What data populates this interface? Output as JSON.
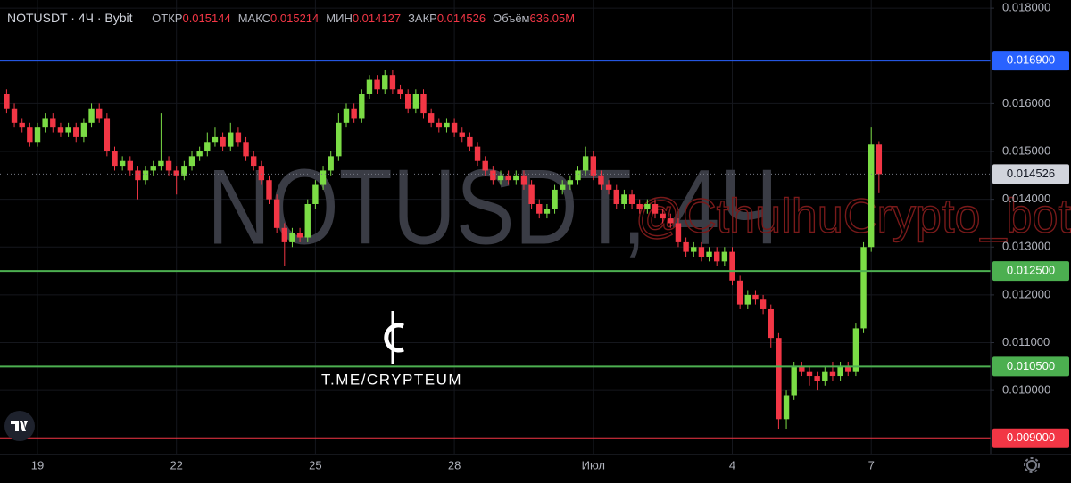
{
  "header": {
    "symbol": "NOTUSDT · 4Ч · Bybit",
    "stats": [
      {
        "name": "ОТКР",
        "value": "0.015144"
      },
      {
        "name": "МАКС",
        "value": "0.015214"
      },
      {
        "name": "МИН",
        "value": "0.014127"
      },
      {
        "name": "ЗАКР",
        "value": "0.014526"
      },
      {
        "name": "Объём",
        "value": "636.05M"
      }
    ]
  },
  "watermarks": {
    "symbol": "NOTUSDT, 4Ч",
    "bot": "@CthulhuCrypto_bot",
    "channel": "T.ME/CRYPTEUM"
  },
  "chart_data": {
    "type": "candlestick",
    "up_color": "#7bdc45",
    "down_color": "#f23645",
    "categories": [
      null,
      null,
      null,
      null,
      "19",
      null,
      null,
      null,
      null,
      null,
      null,
      null,
      null,
      null,
      null,
      null,
      null,
      null,
      null,
      null,
      null,
      null,
      "22",
      null,
      null,
      null,
      null,
      null,
      null,
      null,
      null,
      null,
      null,
      null,
      null,
      null,
      null,
      null,
      null,
      null,
      "25",
      null,
      null,
      null,
      null,
      null,
      null,
      null,
      null,
      null,
      null,
      null,
      null,
      null,
      null,
      null,
      null,
      null,
      "28",
      null,
      null,
      null,
      null,
      null,
      null,
      null,
      null,
      null,
      null,
      null,
      null,
      null,
      null,
      null,
      null,
      null,
      "Июл",
      null,
      null,
      null,
      null,
      null,
      null,
      null,
      null,
      null,
      null,
      null,
      null,
      null,
      null,
      null,
      null,
      null,
      "4",
      null,
      null,
      null,
      null,
      null,
      null,
      null,
      null,
      null,
      null,
      null,
      null,
      null,
      null,
      null,
      null,
      null,
      "7",
      null
    ],
    "open": [
      0.0162,
      0.0159,
      0.0156,
      0.0155,
      0.0152,
      0.0155,
      0.0157,
      0.0155,
      0.0154,
      0.0155,
      0.0153,
      0.0156,
      0.0159,
      0.0157,
      0.015,
      0.0147,
      0.0148,
      0.0146,
      0.0144,
      0.0146,
      0.0147,
      0.0148,
      0.0146,
      0.0145,
      0.0147,
      0.0149,
      0.015,
      0.0152,
      0.0153,
      0.0151,
      0.0154,
      0.0152,
      0.0149,
      0.0147,
      0.0144,
      0.014,
      0.0134,
      0.0131,
      0.0133,
      0.0132,
      0.0139,
      0.0143,
      0.0146,
      0.0149,
      0.0156,
      0.0159,
      0.0157,
      0.0162,
      0.0165,
      0.0163,
      0.0166,
      0.0163,
      0.0162,
      0.0159,
      0.0162,
      0.0158,
      0.0156,
      0.0155,
      0.0156,
      0.0154,
      0.0153,
      0.0151,
      0.0148,
      0.0146,
      0.0144,
      0.0145,
      0.0144,
      0.0145,
      0.0143,
      0.0139,
      0.0137,
      0.0138,
      0.0142,
      0.0143,
      0.0144,
      0.0146,
      0.0149,
      0.0145,
      0.0143,
      0.0142,
      0.0139,
      0.0141,
      0.0139,
      0.0138,
      0.0139,
      0.0137,
      0.0136,
      0.0135,
      0.0131,
      0.0129,
      0.013,
      0.0128,
      0.0129,
      0.0127,
      0.0129,
      0.0123,
      0.0118,
      0.012,
      0.0119,
      0.0117,
      0.0111,
      0.0094,
      0.0099,
      0.0105,
      0.0104,
      0.0103,
      0.0102,
      0.0104,
      0.0103,
      0.0105,
      0.0104,
      0.0113,
      0.013,
      0.015144
    ],
    "high": [
      0.0163,
      0.016,
      0.0157,
      0.0156,
      0.0156,
      0.0158,
      0.0158,
      0.0156,
      0.0156,
      0.0156,
      0.0157,
      0.016,
      0.016,
      0.0158,
      0.0151,
      0.0149,
      0.0149,
      0.0147,
      0.0147,
      0.0148,
      0.0158,
      0.0149,
      0.0147,
      0.0148,
      0.015,
      0.0151,
      0.0154,
      0.0155,
      0.0154,
      0.0156,
      0.0155,
      0.0153,
      0.015,
      0.0148,
      0.0145,
      0.0141,
      0.0135,
      0.0134,
      0.0134,
      0.014,
      0.0144,
      0.0147,
      0.015,
      0.0158,
      0.016,
      0.016,
      0.0163,
      0.0166,
      0.0166,
      0.0167,
      0.0167,
      0.0164,
      0.0163,
      0.0163,
      0.0163,
      0.0159,
      0.0157,
      0.0157,
      0.0157,
      0.0155,
      0.0154,
      0.0152,
      0.0149,
      0.0147,
      0.0146,
      0.0146,
      0.0146,
      0.0146,
      0.0144,
      0.014,
      0.0139,
      0.0143,
      0.0144,
      0.0145,
      0.0147,
      0.0151,
      0.015,
      0.0146,
      0.0144,
      0.0143,
      0.0142,
      0.0142,
      0.014,
      0.014,
      0.014,
      0.0138,
      0.0137,
      0.0136,
      0.0132,
      0.0131,
      0.0131,
      0.013,
      0.013,
      0.013,
      0.013,
      0.0124,
      0.0121,
      0.0121,
      0.012,
      0.0118,
      0.0112,
      0.01,
      0.0106,
      0.0106,
      0.0105,
      0.0104,
      0.0105,
      0.0106,
      0.0106,
      0.0106,
      0.0114,
      0.0131,
      0.0155,
      0.015214
    ],
    "low": [
      0.0158,
      0.0155,
      0.0154,
      0.0151,
      0.0151,
      0.0154,
      0.0154,
      0.0153,
      0.0153,
      0.0152,
      0.0152,
      0.0155,
      0.0156,
      0.0149,
      0.0146,
      0.0146,
      0.0145,
      0.014,
      0.0143,
      0.0145,
      0.0146,
      0.0145,
      0.0141,
      0.0144,
      0.0146,
      0.0148,
      0.0149,
      0.0151,
      0.015,
      0.015,
      0.0151,
      0.0148,
      0.0146,
      0.0143,
      0.0139,
      0.0133,
      0.0126,
      0.013,
      0.0131,
      0.0131,
      0.0138,
      0.0142,
      0.0145,
      0.0148,
      0.0155,
      0.0156,
      0.0156,
      0.0161,
      0.0162,
      0.0162,
      0.0162,
      0.0161,
      0.0158,
      0.0158,
      0.0157,
      0.0155,
      0.0154,
      0.0154,
      0.0153,
      0.0152,
      0.015,
      0.0147,
      0.0145,
      0.0143,
      0.0143,
      0.0143,
      0.0143,
      0.0142,
      0.0138,
      0.0136,
      0.0136,
      0.0137,
      0.0141,
      0.0142,
      0.0143,
      0.0145,
      0.0144,
      0.0142,
      0.0141,
      0.0138,
      0.0138,
      0.0138,
      0.0137,
      0.0137,
      0.0136,
      0.0135,
      0.0134,
      0.013,
      0.0128,
      0.0128,
      0.0127,
      0.0127,
      0.0126,
      0.0126,
      0.0122,
      0.0117,
      0.0117,
      0.0118,
      0.0116,
      0.0109,
      0.0092,
      0.0092,
      0.0098,
      0.0103,
      0.0101,
      0.01,
      0.0101,
      0.0102,
      0.0102,
      0.0103,
      0.0103,
      0.0112,
      0.0129,
      0.014127
    ],
    "close": [
      0.0159,
      0.0156,
      0.0155,
      0.0152,
      0.0155,
      0.0157,
      0.0155,
      0.0154,
      0.0155,
      0.0153,
      0.0156,
      0.0159,
      0.0157,
      0.015,
      0.0147,
      0.0148,
      0.0146,
      0.0144,
      0.0146,
      0.0147,
      0.0148,
      0.0146,
      0.0145,
      0.0147,
      0.0149,
      0.015,
      0.0152,
      0.0153,
      0.0151,
      0.0154,
      0.0152,
      0.0149,
      0.0147,
      0.0144,
      0.014,
      0.0134,
      0.0131,
      0.0133,
      0.0132,
      0.0139,
      0.0143,
      0.0146,
      0.0149,
      0.0156,
      0.0159,
      0.0157,
      0.0162,
      0.0165,
      0.0163,
      0.0166,
      0.0163,
      0.0162,
      0.0159,
      0.0162,
      0.0158,
      0.0156,
      0.0155,
      0.0156,
      0.0154,
      0.0153,
      0.0151,
      0.0148,
      0.0146,
      0.0144,
      0.0145,
      0.0144,
      0.0145,
      0.0143,
      0.0139,
      0.0137,
      0.0138,
      0.0142,
      0.0143,
      0.0144,
      0.0146,
      0.0149,
      0.0145,
      0.0143,
      0.0142,
      0.0139,
      0.0141,
      0.0139,
      0.0138,
      0.0139,
      0.0137,
      0.0136,
      0.0135,
      0.0131,
      0.0129,
      0.013,
      0.0128,
      0.0129,
      0.0127,
      0.0129,
      0.0123,
      0.0118,
      0.012,
      0.0119,
      0.0117,
      0.0111,
      0.0094,
      0.0099,
      0.0105,
      0.0104,
      0.0103,
      0.0102,
      0.0104,
      0.0103,
      0.0105,
      0.0104,
      0.0113,
      0.013,
      0.015144,
      0.014526
    ],
    "ylim": [
      0.00866,
      0.01817
    ],
    "yticks": [
      {
        "value": 0.018,
        "label": "0.018000"
      },
      {
        "value": 0.016,
        "label": "0.016000"
      },
      {
        "value": 0.015,
        "label": "0.015000"
      },
      {
        "value": 0.014,
        "label": "0.014000"
      },
      {
        "value": 0.013,
        "label": "0.013000"
      },
      {
        "value": 0.012,
        "label": "0.012000"
      },
      {
        "value": 0.011,
        "label": "0.011000"
      },
      {
        "value": 0.01,
        "label": "0.010000"
      }
    ],
    "levels": [
      {
        "value": 0.0169,
        "label": "0.016900",
        "color": "#2962ff"
      },
      {
        "value": 0.0125,
        "label": "0.012500",
        "color": "#4caf50"
      },
      {
        "value": 0.0105,
        "label": "0.010500",
        "color": "#4caf50"
      },
      {
        "value": 0.009,
        "label": "0.009000",
        "color": "#f23645"
      }
    ],
    "last_price": {
      "value": 0.014526,
      "label": "0.014526"
    },
    "grid": true
  }
}
